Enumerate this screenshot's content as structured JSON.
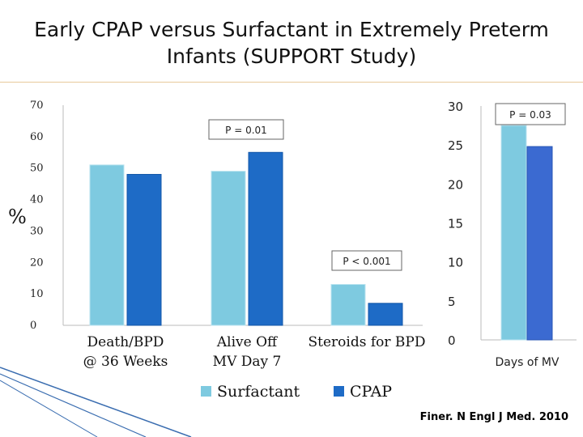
{
  "title": "Early CPAP versus Surfactant in Extremely Preterm Infants (SUPPORT Study)",
  "citation": "Finer. N Engl J Med. 2010",
  "colors": {
    "surfactant": "#7ecae0",
    "cpap": "#1e6bc6",
    "cpap_right": "#3b6ad1"
  },
  "chart_data": [
    {
      "type": "bar",
      "ylabel": "%",
      "ylim": [
        0,
        70
      ],
      "yticks": [
        0,
        10,
        20,
        30,
        40,
        50,
        60,
        70
      ],
      "categories": [
        "Death/BPD\n@ 36 Weeks",
        "Alive Off\nMV Day 7",
        "Steroids for BPD"
      ],
      "series": [
        {
          "name": "Surfactant",
          "values": [
            51,
            49,
            13
          ]
        },
        {
          "name": "CPAP",
          "values": [
            48,
            55,
            7
          ]
        }
      ],
      "annotations": [
        "P = 0.01",
        "P < 0.001"
      ],
      "legend": "bottom"
    },
    {
      "type": "bar",
      "xlabel": "Days of MV",
      "ylim": [
        0,
        30
      ],
      "yticks": [
        0,
        5,
        10,
        15,
        20,
        25,
        30
      ],
      "series": [
        {
          "name": "Surfactant",
          "values": [
            27.5
          ]
        },
        {
          "name": "CPAP",
          "values": [
            24.8
          ]
        }
      ],
      "annotations": [
        "P = 0.03"
      ]
    }
  ]
}
